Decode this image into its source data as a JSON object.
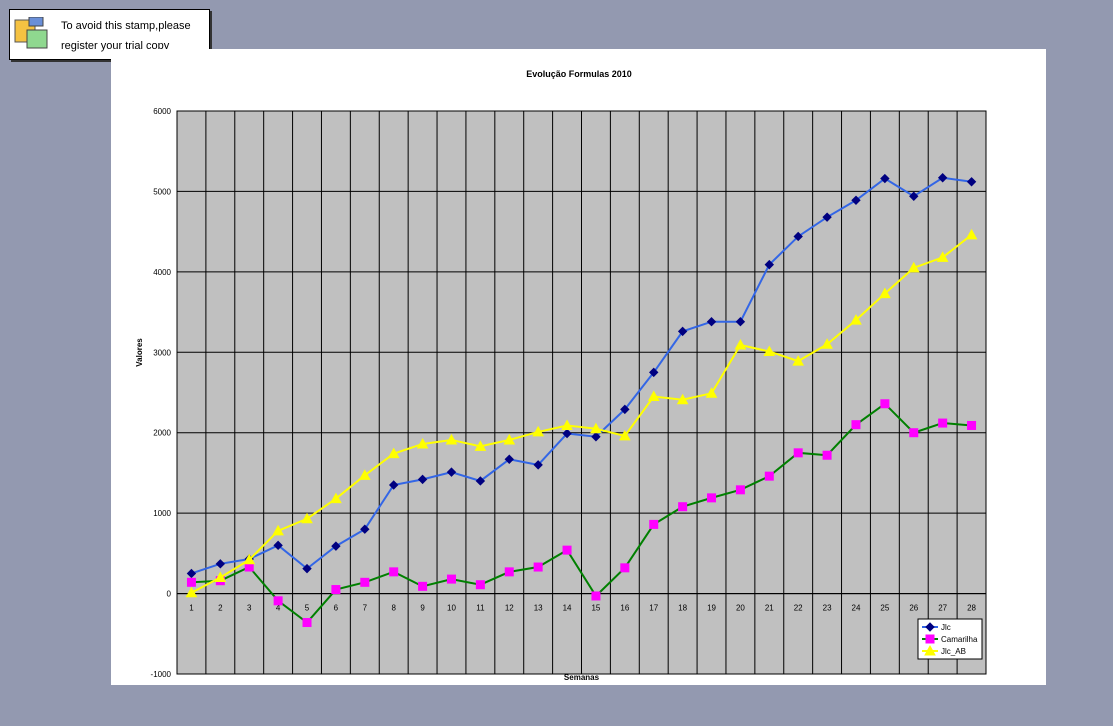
{
  "stamp": {
    "line1": "To avoid this stamp,please",
    "line2": "register your trial copy"
  },
  "chart_data": {
    "type": "line",
    "title": "Evolução Formulas 2010",
    "xlabel": "Semanas",
    "ylabel": "Valores",
    "ylim": [
      -1000,
      6000
    ],
    "ytick_step": 1000,
    "yticks": [
      "-1000",
      "0",
      "1000",
      "2000",
      "3000",
      "4000",
      "5000",
      "6000"
    ],
    "grid": true,
    "legend_position": "bottom-right",
    "plot_background": "#c0c0c0",
    "categories": [
      "1",
      "2",
      "3",
      "4",
      "5",
      "6",
      "7",
      "8",
      "9",
      "10",
      "11",
      "12",
      "13",
      "14",
      "15",
      "16",
      "17",
      "18",
      "19",
      "20",
      "21",
      "22",
      "23",
      "24",
      "25",
      "26",
      "27",
      "28"
    ],
    "series": [
      {
        "name": "Jlc",
        "line_color": "#3366e6",
        "marker_color": "#000080",
        "marker": "diamond",
        "values": [
          250,
          370,
          430,
          600,
          310,
          590,
          800,
          1350,
          1420,
          1510,
          1400,
          1670,
          1600,
          1990,
          1950,
          2290,
          2750,
          3260,
          3380,
          3380,
          4090,
          4440,
          4680,
          4890,
          5160,
          4940,
          5170,
          5120
        ]
      },
      {
        "name": "Camarilha",
        "line_color": "#008000",
        "marker_color": "#ff00ff",
        "marker": "square",
        "values": [
          140,
          160,
          330,
          -90,
          -360,
          50,
          140,
          270,
          90,
          180,
          110,
          270,
          330,
          540,
          -30,
          320,
          860,
          1080,
          1190,
          1290,
          1460,
          1750,
          1720,
          2100,
          2360,
          2000,
          2120,
          2090
        ]
      },
      {
        "name": "Jlc_AB",
        "line_color": "#ffff00",
        "marker_color": "#ffff00",
        "marker": "triangle",
        "values": [
          10,
          200,
          420,
          780,
          930,
          1180,
          1470,
          1740,
          1860,
          1910,
          1830,
          1910,
          2010,
          2090,
          2050,
          1960,
          2450,
          2410,
          2490,
          3090,
          3010,
          2890,
          3100,
          3400,
          3730,
          4050,
          4180,
          4460
        ]
      }
    ]
  }
}
